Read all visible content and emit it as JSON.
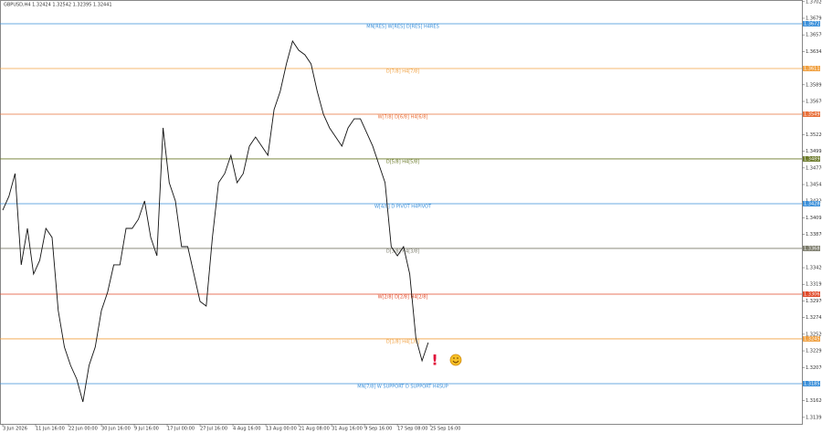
{
  "chart_data": {
    "type": "line",
    "title": "GBPUSD,H4  1.32424 1.32542 1.32395 1.32441",
    "color": "#111111",
    "x": [
      0,
      7.5,
      15,
      22.5,
      30,
      37.5,
      45,
      52.5,
      60,
      67.5,
      75,
      82.5,
      90,
      97.5,
      105,
      112.5,
      120,
      127.5,
      135,
      142.5,
      150,
      157.5,
      165,
      172.5,
      180,
      187.5,
      195,
      202.5,
      210,
      217.5,
      225,
      232.5,
      240,
      247.5,
      255,
      262.5,
      270,
      277.5,
      285,
      292.5,
      300,
      307.5,
      315,
      322.5,
      330,
      337.5,
      345,
      352.5,
      360,
      367.5,
      375,
      382.5,
      390,
      397.5,
      405,
      412.5,
      420,
      427.5,
      435,
      442.5,
      450,
      457.5,
      465,
      472.5,
      480,
      487.5,
      495,
      502.5,
      510,
      517.5
    ],
    "values": [
      1.34199,
      1.34385,
      1.34694,
      1.33458,
      1.33952,
      1.33334,
      1.3352,
      1.33952,
      1.33829,
      1.3284,
      1.32346,
      1.32098,
      1.31913,
      1.31604,
      1.32098,
      1.32346,
      1.3284,
      1.33087,
      1.33458,
      1.33458,
      1.33952,
      1.33952,
      1.34076,
      1.34323,
      1.33829,
      1.33581,
      1.35312,
      1.3457,
      1.34323,
      1.33705,
      1.33705,
      1.33334,
      1.32963,
      1.32901,
      1.33829,
      1.3457,
      1.34694,
      1.34941,
      1.3457,
      1.34694,
      1.35065,
      1.35188,
      1.35065,
      1.34941,
      1.35559,
      1.35806,
      1.36177,
      1.36486,
      1.36362,
      1.36301,
      1.36177,
      1.35806,
      1.35497,
      1.35312,
      1.35188,
      1.35065,
      1.35312,
      1.35435,
      1.35435,
      1.3525,
      1.35065,
      1.34817,
      1.3457,
      1.33705,
      1.33581,
      1.33705,
      1.33334,
      1.32469,
      1.3216,
      1.32407
    ],
    "xlim": [
      0,
      972
    ],
    "xticks": [
      {
        "value": 0,
        "label": "3 Jun 2026"
      },
      {
        "value": 40,
        "label": "11 Jun 16:00"
      },
      {
        "value": 80,
        "label": "22 Jun 00:00"
      },
      {
        "value": 120,
        "label": "30 Jun 16:00"
      },
      {
        "value": 160,
        "label": "9 Jul 16:00"
      },
      {
        "value": 200,
        "label": "17 Jul 00:00"
      },
      {
        "value": 240,
        "label": "27 Jul 16:00"
      },
      {
        "value": 280,
        "label": "4 Aug 16:00"
      },
      {
        "value": 320,
        "label": "13 Aug 00:00"
      },
      {
        "value": 360,
        "label": "21 Aug 08:00"
      },
      {
        "value": 400,
        "label": "31 Aug 16:00"
      },
      {
        "value": 440,
        "label": "9 Sep 16:00"
      },
      {
        "value": 480,
        "label": "17 Sep 08:00"
      },
      {
        "value": 520,
        "label": "25 Sep 16:00"
      }
    ],
    "ylim": [
      1.31307,
      1.37042
    ],
    "yticks": [
      {
        "value": 1.3702,
        "label": "1.37020"
      },
      1.36795,
      {
        "value": 1.3657,
        "label": "1.36570"
      },
      1.36345,
      1.35895,
      {
        "value": 1.3567,
        "label": "1.35670"
      },
      {
        "value": 1.3522,
        "label": "1.35220"
      },
      1.34995,
      {
        "value": 1.3477,
        "label": "1.34770"
      },
      1.34545,
      {
        "value": 1.3432,
        "label": "1.34320"
      },
      1.34095,
      {
        "value": 1.3387,
        "label": "1.33870"
      },
      {
        "value": 1.3342,
        "label": "1.33420"
      },
      1.33195,
      {
        "value": 1.3297,
        "label": "1.32970"
      },
      1.32745,
      {
        "value": 1.3252,
        "label": "1.32520"
      },
      1.32295,
      {
        "value": 1.3207,
        "label": "1.32070"
      },
      {
        "value": 1.3162,
        "label": "1.31620"
      },
      1.31395
    ],
    "levels": [
      {
        "name": "MN[RES] W[RES] D[RES] H4RES",
        "price": 1.36721,
        "color": "#3a8fd9"
      },
      {
        "name": "D[7/8] H4[7/8]",
        "price": 1.36115,
        "color": "#f0a040"
      },
      {
        "name": "W[7/8] D[6/8] H4[6/8]",
        "price": 1.35497,
        "color": "#e8703a"
      },
      {
        "name": "D[5/8] H4[5/8]",
        "price": 1.34892,
        "color": "#6b7a2a"
      },
      {
        "name": "W[4/8] D PIVOT H4PIVOT",
        "price": 1.34286,
        "color": "#3a8fd9"
      },
      {
        "name": "D[3/8] H4[3/8]",
        "price": 1.33681,
        "color": "#7a7a6a"
      },
      {
        "name": "W[2/8] D[2/8] H4[2/8]",
        "price": 1.33062,
        "color": "#e04a2a"
      },
      {
        "name": "D[1/8] H4[1/8]",
        "price": 1.32457,
        "color": "#f0a040"
      },
      {
        "name": "MN[7/8] W SUPPORT D SUPPORT H4SUP",
        "price": 1.31851,
        "color": "#3a8fd9"
      }
    ]
  }
}
